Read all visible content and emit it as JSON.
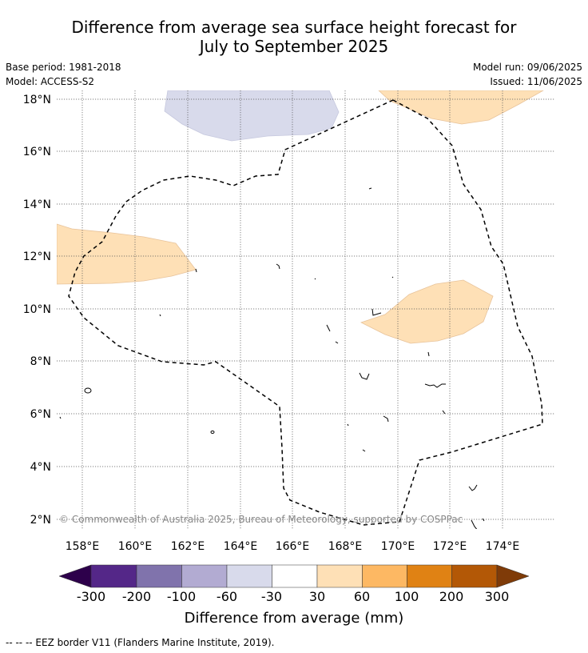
{
  "title_line1": "Difference from average sea surface height forecast for",
  "title_line2": "July to September 2025",
  "base_period": "Base period: 1981-2018",
  "model": "Model: ACCESS-S2",
  "model_run": "Model run: 09/06/2025",
  "issued": "Issued: 11/06/2025",
  "copyright": "© Commonwealth of Australia 2025, Bureau of Meteorology, supported by COSPPac",
  "lat_labels": [
    "18°N",
    "16°N",
    "14°N",
    "12°N",
    "10°N",
    "8°N",
    "6°N",
    "4°N",
    "2°N"
  ],
  "lon_labels": [
    "158°E",
    "160°E",
    "162°E",
    "164°E",
    "166°E",
    "168°E",
    "170°E",
    "172°E",
    "174°E"
  ],
  "colorbar": {
    "title": "Difference from average (mm)",
    "tick_labels": [
      "-300",
      "-200",
      "-100",
      "-60",
      "-30",
      "30",
      "60",
      "100",
      "200",
      "300"
    ],
    "colors": [
      "#2d004b",
      "#542788",
      "#8073ac",
      "#b2abd2",
      "#d8daeb",
      "#ffffff",
      "#fee0b6",
      "#fdb863",
      "#e08214",
      "#b35806",
      "#7f3b08"
    ]
  },
  "footer_legend": "--  --  -- EEZ border V11 (Flanders Marine Institute, 2019)."
}
